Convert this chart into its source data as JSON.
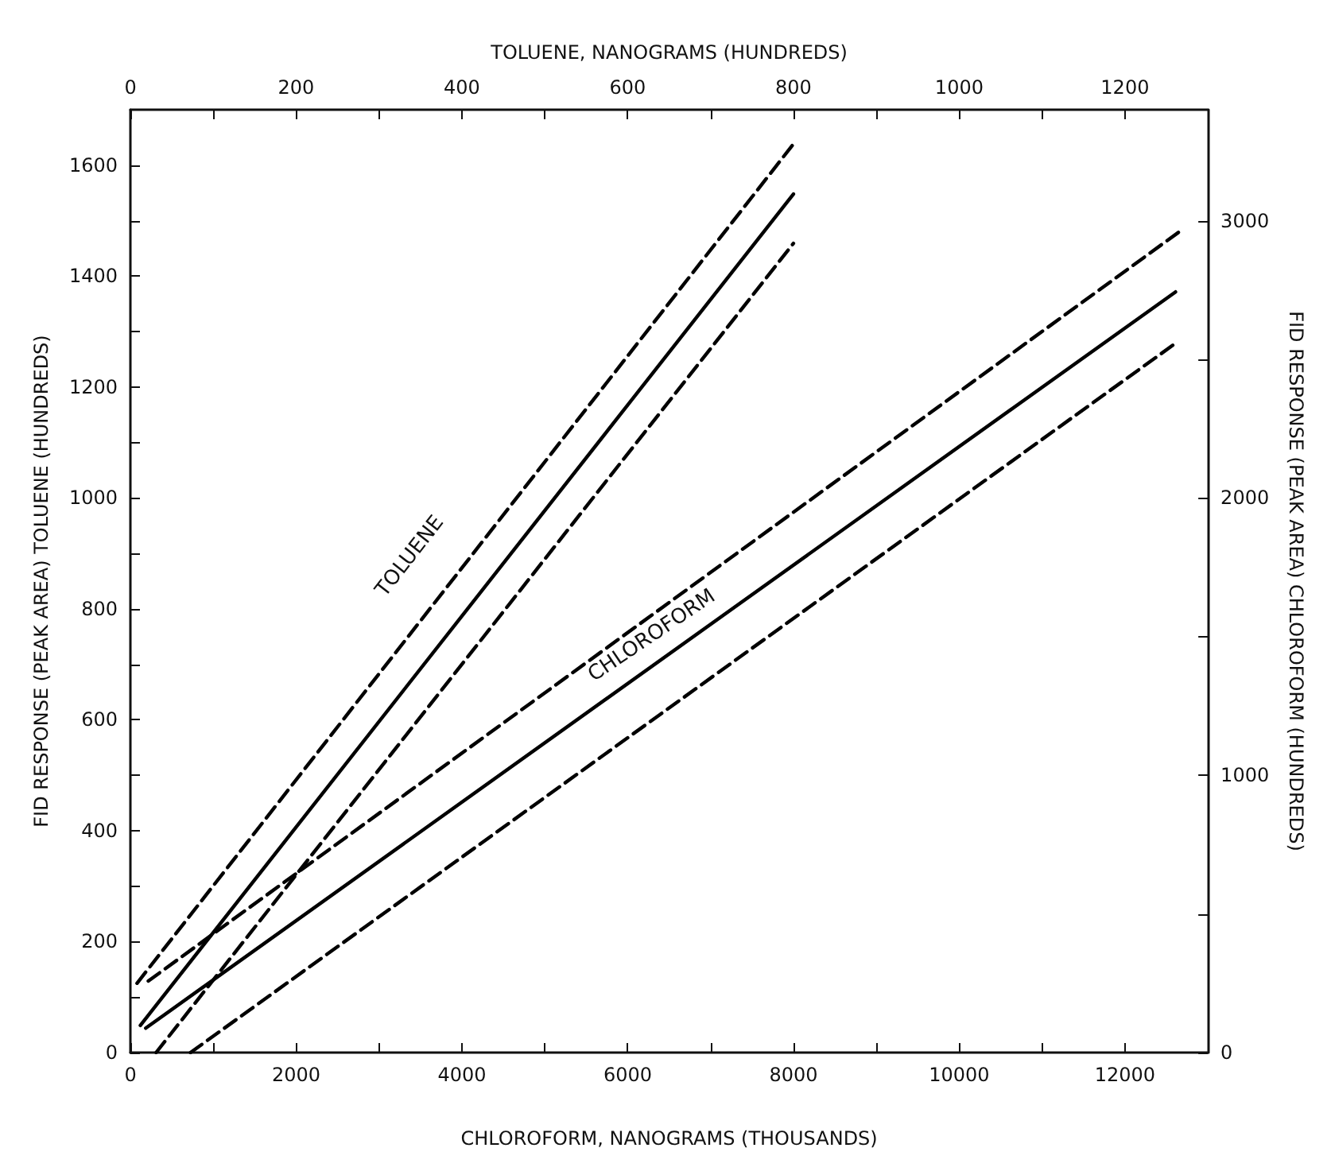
{
  "chart_data": {
    "type": "line",
    "xlabel": "CHLOROFORM, NANOGRAMS (THOUSANDS)",
    "x2label": "TOLUENE, NANOGRAMS (HUNDREDS)",
    "ylabel": "FID RESPONSE (PEAK AREA) TOLUENE (HUNDREDS)",
    "y2label": "FID RESPONSE (PEAK AREA) CHLOROFORM (HUNDREDS)",
    "xlim": [
      0,
      13000
    ],
    "xticks": [
      0,
      {
        "value": 1000,
        "label": null
      },
      2000,
      {
        "value": 3000,
        "label": null
      },
      4000,
      {
        "value": 5000,
        "label": null
      },
      6000,
      {
        "value": 7000,
        "label": null
      },
      8000,
      {
        "value": 9000,
        "label": null
      },
      10000,
      {
        "value": 11000,
        "label": null
      },
      12000
    ],
    "x2lim": [
      0,
      1300
    ],
    "x2ticks": [
      0,
      {
        "value": 100,
        "label": null
      },
      200,
      {
        "value": 300,
        "label": null
      },
      400,
      {
        "value": 500,
        "label": null
      },
      600,
      {
        "value": 700,
        "label": null
      },
      800,
      {
        "value": 900,
        "label": null
      },
      1000,
      {
        "value": 1100,
        "label": null
      },
      1200
    ],
    "ylim": [
      0,
      1700
    ],
    "yticks": [
      0,
      {
        "value": 100,
        "label": null
      },
      200,
      {
        "value": 300,
        "label": null
      },
      400,
      {
        "value": 500,
        "label": null
      },
      600,
      {
        "value": 700,
        "label": null
      },
      800,
      {
        "value": 900,
        "label": null
      },
      1000,
      {
        "value": 1100,
        "label": null
      },
      1200,
      {
        "value": 1300,
        "label": null
      },
      1400,
      {
        "value": 1500,
        "label": null
      },
      1600
    ],
    "y2lim": [
      0,
      3400
    ],
    "y2ticks": [
      0,
      {
        "value": 500,
        "label": null
      },
      1000,
      {
        "value": 1500,
        "label": null
      },
      2000,
      {
        "value": 2500,
        "label": null
      },
      3000
    ],
    "series": [
      {
        "color": "#000000",
        "line_style": "dashed",
        "axis": "x2",
        "x": [
          8,
          803
        ],
        "values": [
          125,
          1644
        ]
      },
      {
        "color": "#000000",
        "line_style": "solid",
        "axis": "x2",
        "x": [
          12,
          800
        ],
        "values": [
          49,
          1548
        ]
      },
      {
        "color": "#000000",
        "line_style": "dashed",
        "axis": "x2",
        "x": [
          31,
          800
        ],
        "values": [
          0,
          1459
        ]
      },
      {
        "color": "#000000",
        "line_style": "dashed",
        "axis": "y2",
        "x": [
          216,
          12670
        ],
        "values": [
          258,
          2963
        ]
      },
      {
        "color": "#000000",
        "line_style": "solid",
        "axis": "y2",
        "x": [
          185,
          12610
        ],
        "values": [
          88,
          2743
        ]
      },
      {
        "color": "#000000",
        "line_style": "dashed",
        "axis": "y2",
        "x": [
          725,
          12630
        ],
        "values": [
          0,
          2562
        ]
      }
    ],
    "annotations": [
      "TOLUENE",
      "CHLOROFORM"
    ],
    "marker": "none",
    "grid": false
  }
}
